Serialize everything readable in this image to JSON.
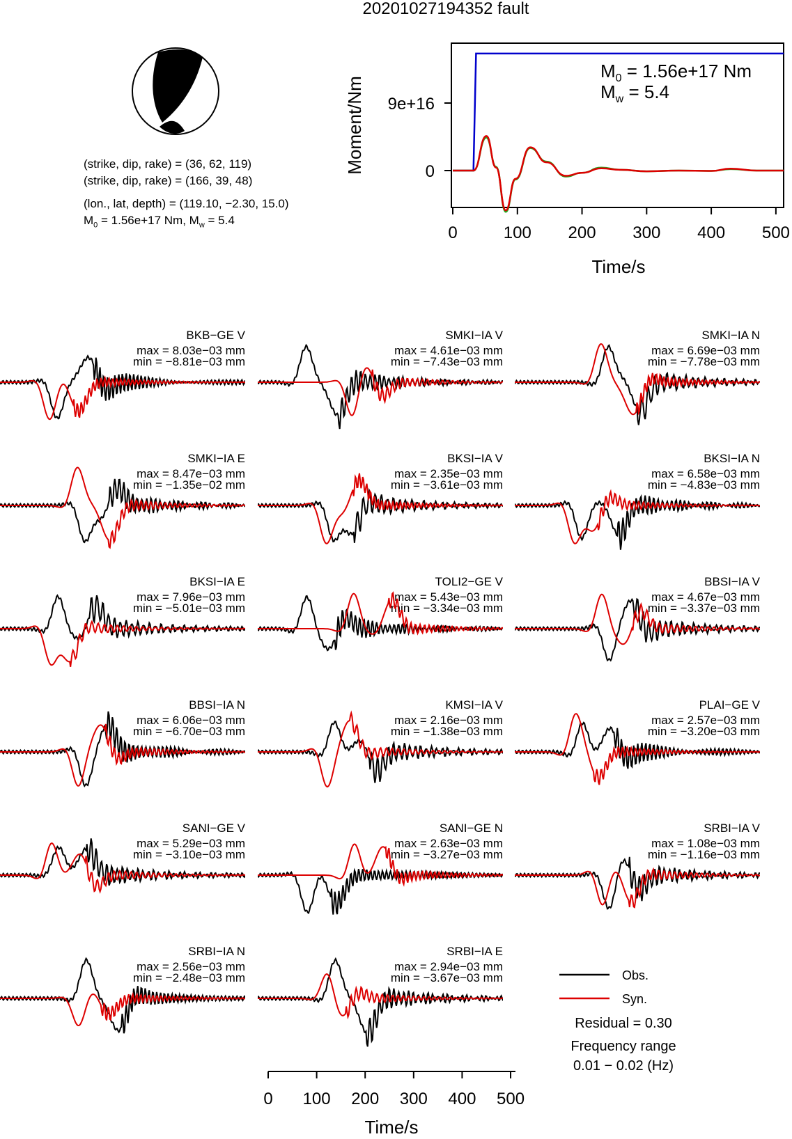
{
  "title": "20201027194352 fault",
  "mechanism": {
    "line1": "(strike, dip, rake) = (36, 62, 119)",
    "line2": "(strike, dip, rake) = (166, 39, 48)",
    "line3": "(lon., lat, depth) = (119.10, −2.30, 15.0)",
    "m0_prefix": "M",
    "m0_sub": "0",
    "m0_val": " = 1.56e+17 Nm, M",
    "mw_sub": "w",
    "mw_val": " = 5.4",
    "ball_icon": "beachball-icon"
  },
  "stf_chart": {
    "ylabel": "Moment/Nm",
    "xlabel": "Time/s",
    "m0_label": "M",
    "m0_sub": "0",
    "m0_text": " = 1.56e+17 Nm",
    "mw_label": "M",
    "mw_sub": "w",
    "mw_text": " = 5.4",
    "ytick_labels": [
      "9e+16",
      "0"
    ],
    "xtick_labels": [
      "0",
      "100",
      "200",
      "300",
      "400",
      "500"
    ]
  },
  "chart_data": {
    "type": "line",
    "title": "20201027194352 fault",
    "source_time_function": {
      "xlabel": "Time/s",
      "ylabel": "Moment/Nm",
      "xlim": [
        0,
        512
      ],
      "y_ticks": [
        0,
        9e+16
      ],
      "cumulative_moment": {
        "x": [
          0,
          32,
          36,
          512
        ],
        "y": [
          0,
          0,
          1.56e+17,
          1.56e+17
        ],
        "color": "#0000cc"
      },
      "rate_obs": {
        "x": [
          0,
          32,
          52,
          67,
          82,
          97,
          120,
          145,
          175,
          200,
          230,
          260,
          300,
          350,
          400,
          430,
          470,
          512
        ],
        "y": [
          0,
          0,
          4.4e+16,
          5000000000000000.0,
          -5.5e+16,
          -1.2e+16,
          3e+16,
          1.2e+16,
          -8000000000000000.0,
          -3000000000000000.0,
          4000000000000000.0,
          1000000000000000.0,
          -1000000000000000.0,
          0,
          -500000000000000.0,
          2000000000000000.0,
          0,
          0
        ],
        "color": "#22aa22"
      },
      "rate_syn": {
        "x": [
          0,
          32,
          52,
          67,
          82,
          97,
          120,
          145,
          175,
          200,
          230,
          260,
          300,
          350,
          400,
          430,
          470,
          512
        ],
        "y": [
          0,
          0,
          4.6e+16,
          4000000000000000.0,
          -5.3e+16,
          -1.1e+16,
          3.1e+16,
          1.1e+16,
          -7000000000000000.0,
          -3000000000000000.0,
          3000000000000000.0,
          1000000000000000.0,
          -1000000000000000.0,
          0,
          -500000000000000.0,
          2500000000000000.0,
          0,
          0
        ],
        "color": "#dd0000"
      }
    },
    "waveform_xlabel": "Time/s",
    "waveform_xlim": [
      0,
      510
    ],
    "waveform_xtick_labels": [
      "0",
      "100",
      "200",
      "300",
      "400",
      "500"
    ],
    "waveforms": [
      {
        "station": "BKB−GE V",
        "max": "max = 8.03e−03 mm",
        "min": "min = −8.81e−03 mm"
      },
      {
        "station": "SMKI−IA V",
        "max": "max = 4.61e−03 mm",
        "min": "min = −7.43e−03 mm"
      },
      {
        "station": "SMKI−IA N",
        "max": "max = 6.69e−03 mm",
        "min": "min = −7.78e−03 mm"
      },
      {
        "station": "SMKI−IA E",
        "max": "max = 8.47e−03 mm",
        "min": "min = −1.35e−02 mm"
      },
      {
        "station": "BKSI−IA V",
        "max": "max = 2.35e−03 mm",
        "min": "min = −3.61e−03 mm"
      },
      {
        "station": "BKSI−IA N",
        "max": "max = 6.58e−03 mm",
        "min": "min = −4.83e−03 mm"
      },
      {
        "station": "BKSI−IA E",
        "max": "max = 7.96e−03 mm",
        "min": "min = −5.01e−03 mm"
      },
      {
        "station": "TOLI2−GE V",
        "max": "max = 5.43e−03 mm",
        "min": "min = −3.34e−03 mm"
      },
      {
        "station": "BBSI−IA V",
        "max": "max = 4.67e−03 mm",
        "min": "min = −3.37e−03 mm"
      },
      {
        "station": "BBSI−IA N",
        "max": "max = 6.06e−03 mm",
        "min": "min = −6.70e−03 mm"
      },
      {
        "station": "KMSI−IA V",
        "max": "max = 2.16e−03 mm",
        "min": "min = −1.38e−03 mm"
      },
      {
        "station": "PLAI−GE V",
        "max": "max = 2.57e−03 mm",
        "min": "min = −3.20e−03 mm"
      },
      {
        "station": "SANI−GE V",
        "max": "max = 5.29e−03 mm",
        "min": "min = −3.10e−03 mm"
      },
      {
        "station": "SANI−GE N",
        "max": "max = 2.63e−03 mm",
        "min": "min = −3.27e−03 mm"
      },
      {
        "station": "SRBI−IA V",
        "max": "max = 1.08e−03 mm",
        "min": "min = −1.16e−03 mm"
      },
      {
        "station": "SRBI−IA N",
        "max": "max = 2.56e−03 mm",
        "min": "min = −2.48e−03 mm"
      },
      {
        "station": "SRBI−IA E",
        "max": "max = 2.94e−03 mm",
        "min": "min = −3.67e−03 mm"
      }
    ],
    "legend": [
      {
        "label": "Obs.",
        "color": "#000000"
      },
      {
        "label": "Syn.",
        "color": "#dd0000"
      }
    ],
    "residual": "Residual = 0.30",
    "frequency_label": "Frequency range",
    "frequency_value": "0.01 − 0.02 (Hz)"
  }
}
